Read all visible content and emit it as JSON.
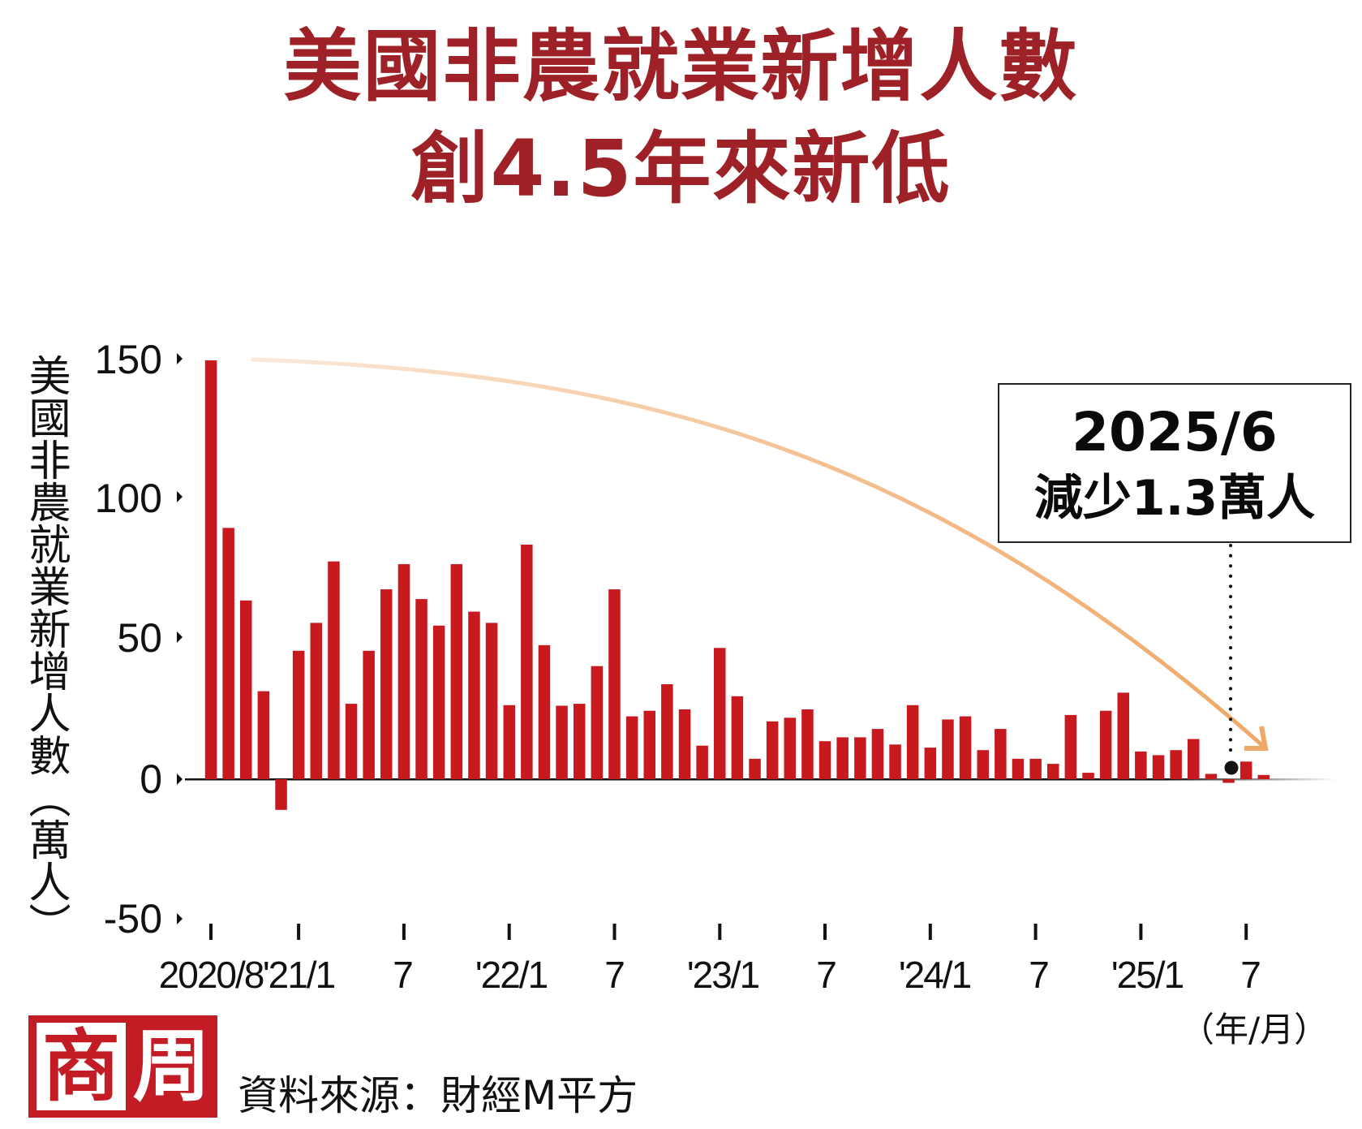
{
  "title": {
    "line1": "美國非農就業新增人數",
    "line2": "創4.5年來新低"
  },
  "y_axis": {
    "label": "美國非農就業新增人數（萬人）",
    "ticks": [
      "150",
      "100",
      "50",
      "0",
      "-50"
    ]
  },
  "x_axis": {
    "ticks": [
      "2020/8",
      "'21/1",
      "7",
      "'22/1",
      "7",
      "'23/1",
      "7",
      "'24/1",
      "7",
      "'25/1",
      "7"
    ],
    "unit": "（年/月）"
  },
  "callout": {
    "date": "2025/6",
    "text": "減少1.3萬人"
  },
  "logo": {
    "char1": "商",
    "char2": "周"
  },
  "source": "資料來源：財經M平方",
  "colors": {
    "title": "#9e2127",
    "bar": "#c8191f",
    "trend_arrow": "#f0a868",
    "axis": "#111111"
  },
  "chart_data": {
    "type": "bar",
    "title": "美國非農就業新增人數 創4.5年來新低",
    "xlabel": "（年/月）",
    "ylabel": "美國非農就業新增人數（萬人）",
    "ylim": [
      -50,
      150
    ],
    "yticks": [
      150,
      100,
      50,
      0,
      -50
    ],
    "grid": false,
    "legend": null,
    "categories": [
      "2020/8",
      "2020/9",
      "2020/10",
      "2020/11",
      "2020/12",
      "2021/1",
      "2021/2",
      "2021/3",
      "2021/4",
      "2021/5",
      "2021/6",
      "2021/7",
      "2021/8",
      "2021/9",
      "2021/10",
      "2021/11",
      "2021/12",
      "2022/1",
      "2022/2",
      "2022/3",
      "2022/4",
      "2022/5",
      "2022/6",
      "2022/7",
      "2022/8",
      "2022/9",
      "2022/10",
      "2022/11",
      "2022/12",
      "2023/1",
      "2023/2",
      "2023/3",
      "2023/4",
      "2023/5",
      "2023/6",
      "2023/7",
      "2023/8",
      "2023/9",
      "2023/10",
      "2023/11",
      "2023/12",
      "2024/1",
      "2024/2",
      "2024/3",
      "2024/4",
      "2024/5",
      "2024/6",
      "2024/7",
      "2024/8",
      "2024/9",
      "2024/10",
      "2024/11",
      "2024/12",
      "2025/1",
      "2025/2",
      "2025/3",
      "2025/4",
      "2025/5",
      "2025/6",
      "2025/7",
      "2025/8"
    ],
    "values": [
      150,
      90,
      64,
      31.5,
      -11,
      46,
      56,
      78,
      27,
      46,
      68,
      77,
      64.5,
      55,
      77,
      60,
      56,
      26.5,
      84,
      48,
      26.3,
      27,
      40.5,
      68,
      22.5,
      24.5,
      34,
      25,
      12,
      47,
      29.7,
      7.3,
      20.7,
      22,
      25,
      13.6,
      15,
      15,
      18,
      12.4,
      26.5,
      11.3,
      21.4,
      22.5,
      10.4,
      18,
      7.3,
      7.3,
      5.5,
      23,
      2.3,
      24.5,
      31,
      9.9,
      8.6,
      10.4,
      14.4,
      1.9,
      -1.3,
      6.3,
      1.5
    ],
    "annotations": [
      {
        "x": "2025/6",
        "text": "2025/6 減少1.3萬人",
        "value": -1.3
      },
      {
        "type": "trend-arrow",
        "description": "downward curved arrow from 2020/8 high to 2025"
      }
    ]
  }
}
